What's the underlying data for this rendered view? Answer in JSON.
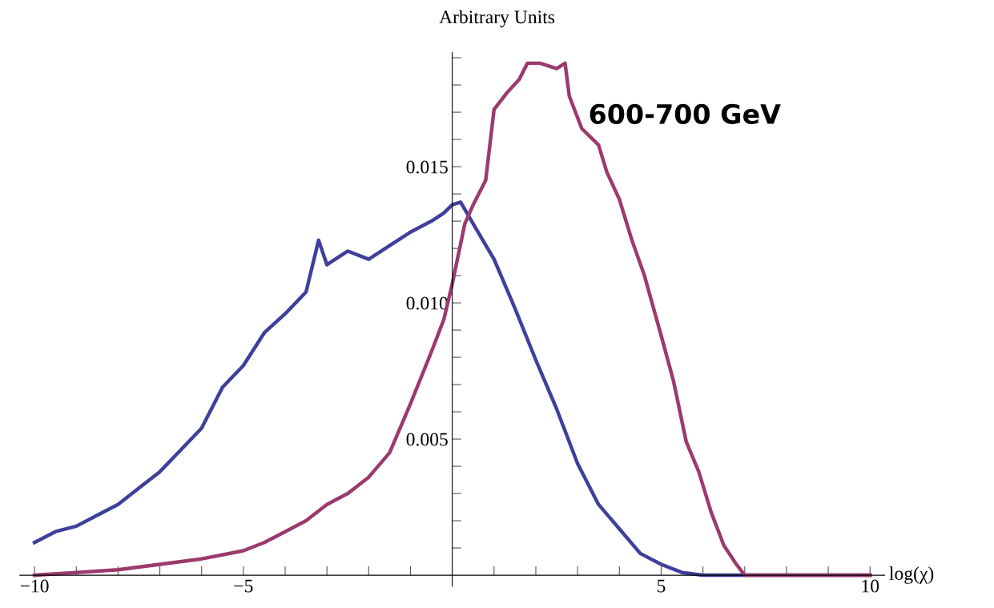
{
  "chart_data": {
    "type": "line",
    "xlabel": "log(χ)",
    "ylabel": "Arbitrary Units",
    "annotations": [
      "600-700 GeV"
    ],
    "xlim": [
      -10.35,
      10.35
    ],
    "ylim": [
      -0.0004,
      0.0192
    ],
    "xticks": [
      {
        "value": -10,
        "label": "−10"
      },
      {
        "value": -9,
        "label": null
      },
      {
        "value": -8,
        "label": null
      },
      {
        "value": -7,
        "label": null
      },
      {
        "value": -6,
        "label": null
      },
      {
        "value": -5,
        "label": "−5"
      },
      {
        "value": -4,
        "label": null
      },
      {
        "value": -3,
        "label": null
      },
      {
        "value": -2,
        "label": null
      },
      {
        "value": -1,
        "label": null
      },
      {
        "value": 1,
        "label": null
      },
      {
        "value": 2,
        "label": null
      },
      {
        "value": 3,
        "label": null
      },
      {
        "value": 4,
        "label": null
      },
      {
        "value": 5,
        "label": "5"
      },
      {
        "value": 6,
        "label": null
      },
      {
        "value": 7,
        "label": null
      },
      {
        "value": 8,
        "label": null
      },
      {
        "value": 9,
        "label": null
      },
      {
        "value": 10,
        "label": "10"
      }
    ],
    "yticks": [
      {
        "value": 0.001,
        "label": null
      },
      {
        "value": 0.002,
        "label": null
      },
      {
        "value": 0.003,
        "label": null
      },
      {
        "value": 0.004,
        "label": null
      },
      {
        "value": 0.005,
        "label": "0.005"
      },
      {
        "value": 0.006,
        "label": null
      },
      {
        "value": 0.007,
        "label": null
      },
      {
        "value": 0.008,
        "label": null
      },
      {
        "value": 0.009,
        "label": null
      },
      {
        "value": 0.01,
        "label": "0.010"
      },
      {
        "value": 0.011,
        "label": null
      },
      {
        "value": 0.012,
        "label": null
      },
      {
        "value": 0.013,
        "label": null
      },
      {
        "value": 0.014,
        "label": null
      },
      {
        "value": 0.015,
        "label": "0.015"
      },
      {
        "value": 0.016,
        "label": null
      },
      {
        "value": 0.017,
        "label": null
      },
      {
        "value": 0.018,
        "label": null
      },
      {
        "value": 0.019,
        "label": null
      }
    ],
    "grid": false,
    "legend": false,
    "marker": "none",
    "line_style": "solid",
    "series": [
      {
        "color": "#3f3f9c",
        "x": [
          -10,
          -9.5,
          -9,
          -8.5,
          -8,
          -7.5,
          -7,
          -6.5,
          -6,
          -5.5,
          -5,
          -4.5,
          -4,
          -3.5,
          -3.2,
          -3,
          -2.5,
          -2,
          -1.5,
          -1,
          -0.5,
          -0.2,
          0,
          0.2,
          0.5,
          1,
          1.5,
          2,
          2.5,
          3,
          3.5,
          4,
          4.5,
          5,
          5.5,
          6,
          7,
          8,
          9,
          10
        ],
        "values": [
          0.0012,
          0.0016,
          0.0018,
          0.0022,
          0.0026,
          0.0032,
          0.0038,
          0.0046,
          0.0054,
          0.0069,
          0.0077,
          0.0089,
          0.0096,
          0.0104,
          0.0123,
          0.0114,
          0.0119,
          0.0116,
          0.0121,
          0.0126,
          0.013,
          0.0133,
          0.0136,
          0.0137,
          0.0129,
          0.0116,
          0.0098,
          0.0079,
          0.0061,
          0.0041,
          0.0026,
          0.0017,
          0.0008,
          0.0004,
          0.0001,
          0.0,
          0.0,
          0.0,
          0.0,
          0.0
        ]
      },
      {
        "color": "#9b3a6e",
        "x": [
          -10,
          -9,
          -8,
          -7,
          -6,
          -5,
          -4.5,
          -4,
          -3.5,
          -3,
          -2.5,
          -2,
          -1.5,
          -1,
          -0.5,
          -0.2,
          0,
          0.3,
          0.5,
          0.8,
          1,
          1.3,
          1.6,
          1.8,
          2.1,
          2.5,
          2.7,
          2.8,
          3.1,
          3.5,
          3.7,
          4,
          4.3,
          4.6,
          5,
          5.3,
          5.6,
          5.9,
          6.2,
          6.5,
          6.8,
          7,
          8,
          9,
          10
        ],
        "values": [
          0.0,
          0.0001,
          0.0002,
          0.0004,
          0.0006,
          0.0009,
          0.0012,
          0.0016,
          0.002,
          0.0026,
          0.003,
          0.0036,
          0.0045,
          0.0063,
          0.0082,
          0.0094,
          0.0107,
          0.0129,
          0.0136,
          0.0145,
          0.0171,
          0.0177,
          0.0182,
          0.0188,
          0.0188,
          0.0186,
          0.0188,
          0.0176,
          0.0164,
          0.0158,
          0.0148,
          0.0138,
          0.0123,
          0.011,
          0.0088,
          0.0071,
          0.0049,
          0.0038,
          0.0023,
          0.0011,
          0.0004,
          0.0,
          0.0,
          0.0,
          0.0
        ]
      }
    ]
  }
}
